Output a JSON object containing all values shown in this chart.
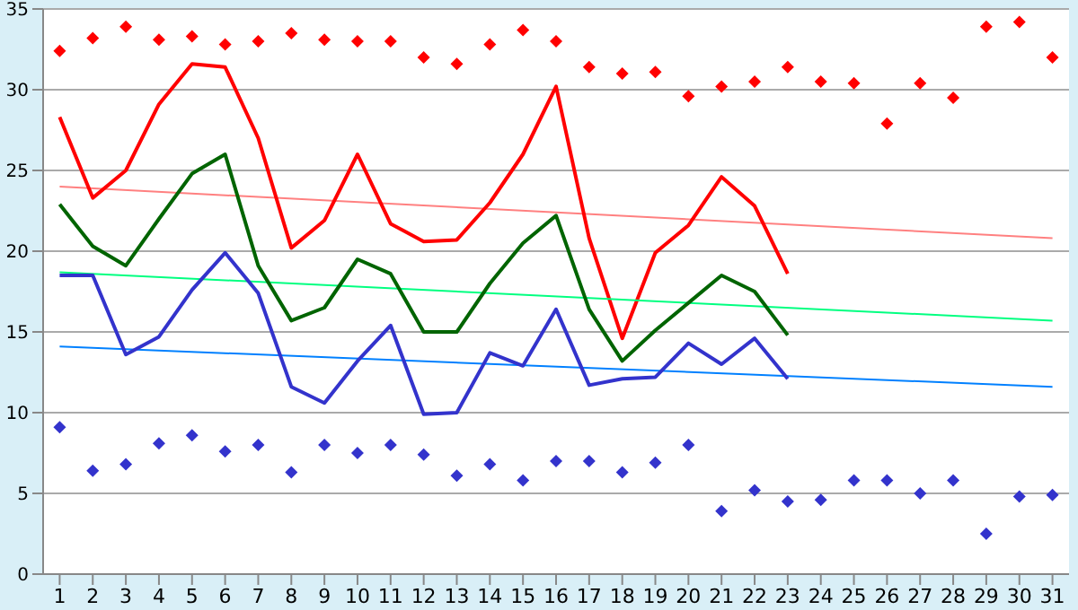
{
  "chart_data": {
    "type": "line",
    "xlim": [
      0.5,
      31.5
    ],
    "xticks": [
      1,
      2,
      3,
      4,
      5,
      6,
      7,
      8,
      9,
      10,
      11,
      12,
      13,
      14,
      15,
      16,
      17,
      18,
      19,
      20,
      21,
      22,
      23,
      24,
      25,
      26,
      27,
      28,
      29,
      30,
      31
    ],
    "ylim": [
      0,
      35
    ],
    "yticks": [
      0,
      5,
      10,
      15,
      20,
      25,
      30,
      35
    ],
    "grid": "y",
    "line_style": "solid",
    "series": [
      {
        "type": "scatter",
        "marker": "diamond",
        "color": "#ff0000",
        "x": [
          1,
          2,
          3,
          4,
          5,
          6,
          7,
          8,
          9,
          10,
          11,
          12,
          13,
          14,
          15,
          16,
          17,
          18,
          19,
          20,
          21,
          22,
          23,
          24,
          25,
          26,
          27,
          28,
          29,
          30,
          31
        ],
        "values": [
          32.4,
          33.2,
          33.9,
          33.1,
          33.3,
          32.8,
          33.0,
          33.5,
          33.1,
          33.0,
          33.0,
          32.0,
          31.6,
          32.8,
          33.7,
          33.0,
          31.4,
          31.0,
          31.1,
          29.6,
          30.2,
          30.5,
          31.4,
          30.5,
          30.4,
          27.9,
          30.4,
          29.5,
          33.9,
          34.2,
          32.0
        ]
      },
      {
        "color": "#ff8080",
        "x": [
          1,
          31
        ],
        "values": [
          24.0,
          20.8
        ]
      },
      {
        "color": "#ff0000",
        "x": [
          1,
          2,
          3,
          4,
          5,
          6,
          7,
          8,
          9,
          10,
          11,
          12,
          13,
          14,
          15,
          16,
          17,
          18,
          19,
          20,
          21,
          22,
          23
        ],
        "values": [
          28.3,
          23.3,
          25.0,
          29.1,
          31.6,
          31.4,
          27.0,
          20.2,
          21.9,
          26.0,
          21.7,
          20.6,
          20.7,
          23.0,
          26.0,
          30.2,
          20.8,
          14.6,
          19.9,
          21.6,
          24.6,
          22.8,
          18.6
        ]
      },
      {
        "color": "#00ff80",
        "x": [
          1,
          31
        ],
        "values": [
          18.7,
          15.7
        ]
      },
      {
        "color": "#006400",
        "x": [
          1,
          2,
          3,
          4,
          5,
          6,
          7,
          8,
          9,
          10,
          11,
          12,
          13,
          14,
          15,
          16,
          17,
          18,
          19,
          20,
          21,
          22,
          23
        ],
        "values": [
          22.9,
          20.3,
          19.1,
          22.0,
          24.8,
          26.0,
          19.1,
          15.7,
          16.5,
          19.5,
          18.6,
          15.0,
          15.0,
          18.0,
          20.5,
          22.2,
          16.4,
          13.2,
          15.1,
          16.8,
          18.5,
          17.5,
          14.8
        ]
      },
      {
        "color": "#0080ff",
        "x": [
          1,
          31
        ],
        "values": [
          14.1,
          11.6
        ]
      },
      {
        "color": "#3333cc",
        "x": [
          1,
          2,
          3,
          4,
          5,
          6,
          7,
          8,
          9,
          10,
          11,
          12,
          13,
          14,
          15,
          16,
          17,
          18,
          19,
          20,
          21,
          22,
          23
        ],
        "values": [
          18.5,
          18.5,
          13.6,
          14.7,
          17.6,
          19.9,
          17.4,
          11.6,
          10.6,
          13.2,
          15.4,
          9.9,
          10.0,
          13.7,
          12.9,
          16.4,
          11.7,
          12.1,
          12.2,
          14.3,
          13.0,
          14.6,
          12.1
        ]
      },
      {
        "type": "scatter",
        "marker": "diamond",
        "color": "#3333cc",
        "x": [
          1,
          2,
          3,
          4,
          5,
          6,
          7,
          8,
          9,
          10,
          11,
          12,
          13,
          14,
          15,
          16,
          17,
          18,
          19,
          20,
          21,
          22,
          23,
          24,
          25,
          26,
          27,
          28,
          29,
          30,
          31
        ],
        "values": [
          9.1,
          6.4,
          6.8,
          8.1,
          8.6,
          7.6,
          8.0,
          6.3,
          8.0,
          7.5,
          8.0,
          7.4,
          6.1,
          6.8,
          5.8,
          7.0,
          7.0,
          6.3,
          6.9,
          8.0,
          3.9,
          5.2,
          4.5,
          4.6,
          5.8,
          5.8,
          5.0,
          5.8,
          2.5,
          4.8,
          4.9
        ]
      }
    ]
  }
}
